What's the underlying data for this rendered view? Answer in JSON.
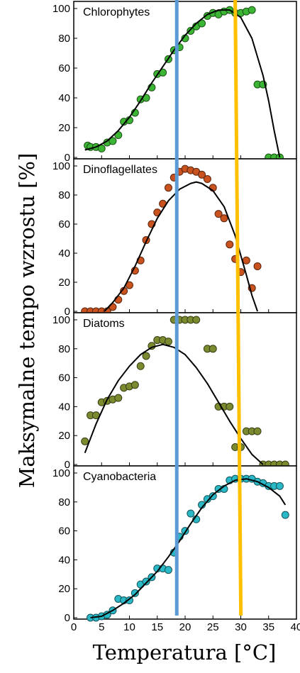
{
  "ylabel": "Maksymalne tempo wzrostu [%]",
  "xlabel": "Temperatura [°C]",
  "chart_data": [
    {
      "type": "scatter",
      "title": "Chlorophytes",
      "color": "#3cb534",
      "xlim": [
        0,
        40
      ],
      "ylim": [
        0,
        100
      ],
      "xticks": [
        0,
        5,
        10,
        15,
        20,
        25,
        30,
        35,
        40
      ],
      "yticks": [
        0,
        20,
        40,
        60,
        80,
        100
      ],
      "points": [
        [
          2.5,
          8
        ],
        [
          3,
          7
        ],
        [
          4,
          7
        ],
        [
          5,
          6
        ],
        [
          6,
          10
        ],
        [
          7,
          11
        ],
        [
          8,
          15
        ],
        [
          9,
          24
        ],
        [
          10,
          25
        ],
        [
          11,
          30
        ],
        [
          12,
          39
        ],
        [
          13,
          40
        ],
        [
          14,
          47
        ],
        [
          15,
          56
        ],
        [
          16,
          57
        ],
        [
          17,
          66
        ],
        [
          18,
          72
        ],
        [
          19,
          74
        ],
        [
          20,
          80
        ],
        [
          21,
          85
        ],
        [
          22,
          88
        ],
        [
          23,
          90
        ],
        [
          24,
          95
        ],
        [
          25,
          97
        ],
        [
          26,
          96
        ],
        [
          27,
          98
        ],
        [
          28,
          99
        ],
        [
          29,
          97
        ],
        [
          30,
          97
        ],
        [
          31,
          98
        ],
        [
          32,
          99
        ],
        [
          33,
          49
        ],
        [
          34,
          49
        ],
        [
          35,
          0
        ],
        [
          36,
          0
        ],
        [
          37,
          0
        ]
      ],
      "curve": [
        [
          2,
          5
        ],
        [
          4,
          7
        ],
        [
          6,
          11
        ],
        [
          8,
          18
        ],
        [
          10,
          27
        ],
        [
          12,
          38
        ],
        [
          14,
          50
        ],
        [
          16,
          61
        ],
        [
          18,
          72
        ],
        [
          20,
          82
        ],
        [
          22,
          90
        ],
        [
          24,
          96
        ],
        [
          26,
          99
        ],
        [
          28,
          99
        ],
        [
          30,
          94
        ],
        [
          32,
          80
        ],
        [
          34,
          55
        ],
        [
          35,
          38
        ],
        [
          36,
          18
        ],
        [
          37,
          0
        ]
      ]
    },
    {
      "type": "scatter",
      "title": "Dinoflagellates",
      "color": "#c9521e",
      "xlim": [
        0,
        40
      ],
      "ylim": [
        0,
        100
      ],
      "xticks": [
        0,
        5,
        10,
        15,
        20,
        25,
        30,
        35,
        40
      ],
      "yticks": [
        0,
        20,
        40,
        60,
        80,
        100
      ],
      "points": [
        [
          2,
          0
        ],
        [
          3,
          0
        ],
        [
          4,
          0
        ],
        [
          5,
          0
        ],
        [
          6,
          0
        ],
        [
          7,
          3
        ],
        [
          8,
          8
        ],
        [
          9,
          14
        ],
        [
          10,
          18
        ],
        [
          11,
          28
        ],
        [
          12,
          35
        ],
        [
          13,
          49
        ],
        [
          14,
          60
        ],
        [
          15,
          68
        ],
        [
          16,
          74
        ],
        [
          17,
          85
        ],
        [
          18,
          92
        ],
        [
          19,
          96
        ],
        [
          20,
          98
        ],
        [
          21,
          97
        ],
        [
          22,
          96
        ],
        [
          23,
          94
        ],
        [
          24,
          91
        ],
        [
          25,
          85
        ],
        [
          26,
          67
        ],
        [
          27,
          64
        ],
        [
          28,
          46
        ],
        [
          29,
          36
        ],
        [
          30,
          27
        ],
        [
          31,
          35
        ],
        [
          32,
          16
        ],
        [
          33,
          31
        ]
      ],
      "curve": [
        [
          5.5,
          0
        ],
        [
          7,
          6
        ],
        [
          9,
          16
        ],
        [
          11,
          31
        ],
        [
          13,
          48
        ],
        [
          15,
          64
        ],
        [
          17,
          76
        ],
        [
          19,
          84
        ],
        [
          21,
          88
        ],
        [
          22,
          89
        ],
        [
          23,
          88
        ],
        [
          25,
          83
        ],
        [
          27,
          72
        ],
        [
          29,
          52
        ],
        [
          31,
          25
        ],
        [
          32,
          11
        ],
        [
          33,
          0
        ]
      ]
    },
    {
      "type": "scatter",
      "title": "Diatoms",
      "color": "#7a8a2e",
      "xlim": [
        0,
        40
      ],
      "ylim": [
        0,
        100
      ],
      "xticks": [
        0,
        5,
        10,
        15,
        20,
        25,
        30,
        35,
        40
      ],
      "yticks": [
        0,
        20,
        40,
        60,
        80,
        100
      ],
      "points": [
        [
          2,
          16
        ],
        [
          3,
          34
        ],
        [
          4,
          34
        ],
        [
          5,
          43
        ],
        [
          6,
          44
        ],
        [
          7,
          45
        ],
        [
          8,
          46
        ],
        [
          9,
          53
        ],
        [
          10,
          54
        ],
        [
          11,
          55
        ],
        [
          12,
          68
        ],
        [
          13,
          75
        ],
        [
          14,
          82
        ],
        [
          15,
          86
        ],
        [
          16,
          86
        ],
        [
          17,
          85
        ],
        [
          18,
          100
        ],
        [
          19,
          100
        ],
        [
          20,
          100
        ],
        [
          21,
          100
        ],
        [
          22,
          100
        ],
        [
          24,
          80
        ],
        [
          25,
          80
        ],
        [
          26,
          40
        ],
        [
          27,
          40
        ],
        [
          28,
          40
        ],
        [
          29,
          12
        ],
        [
          30,
          12
        ],
        [
          31,
          23
        ],
        [
          32,
          23
        ],
        [
          33,
          23
        ],
        [
          34,
          0
        ],
        [
          35,
          0
        ],
        [
          36,
          0
        ],
        [
          37,
          0
        ],
        [
          38,
          0
        ]
      ],
      "curve": [
        [
          2,
          8
        ],
        [
          4,
          28
        ],
        [
          6,
          45
        ],
        [
          8,
          58
        ],
        [
          10,
          68
        ],
        [
          12,
          76
        ],
        [
          14,
          81
        ],
        [
          16,
          83
        ],
        [
          18,
          81
        ],
        [
          20,
          76
        ],
        [
          22,
          67
        ],
        [
          24,
          56
        ],
        [
          26,
          43
        ],
        [
          28,
          30
        ],
        [
          30,
          18
        ],
        [
          32,
          7
        ],
        [
          34,
          0
        ]
      ]
    },
    {
      "type": "scatter",
      "title": "Cyanobacteria",
      "color": "#2ab8c6",
      "xlim": [
        0,
        40
      ],
      "ylim": [
        0,
        100
      ],
      "xticks": [
        0,
        5,
        10,
        15,
        20,
        25,
        30,
        35,
        40
      ],
      "yticks": [
        0,
        20,
        40,
        60,
        80,
        100
      ],
      "points": [
        [
          3,
          0
        ],
        [
          4,
          0
        ],
        [
          5,
          1
        ],
        [
          6,
          2
        ],
        [
          7,
          5
        ],
        [
          8,
          13
        ],
        [
          9,
          12
        ],
        [
          10,
          12
        ],
        [
          11,
          17
        ],
        [
          12,
          23
        ],
        [
          13,
          25
        ],
        [
          14,
          28
        ],
        [
          15,
          34
        ],
        [
          16,
          34
        ],
        [
          17,
          33
        ],
        [
          18,
          45
        ],
        [
          19,
          56
        ],
        [
          20,
          60
        ],
        [
          21,
          72
        ],
        [
          22,
          68
        ],
        [
          23,
          78
        ],
        [
          24,
          82
        ],
        [
          25,
          84
        ],
        [
          26,
          89
        ],
        [
          27,
          89
        ],
        [
          28,
          95
        ],
        [
          29,
          96
        ],
        [
          30,
          96
        ],
        [
          31,
          96
        ],
        [
          32,
          96
        ],
        [
          33,
          94
        ],
        [
          34,
          93
        ],
        [
          35,
          91
        ],
        [
          36,
          91
        ],
        [
          37,
          91
        ],
        [
          38,
          71
        ]
      ],
      "curve": [
        [
          3,
          0
        ],
        [
          5,
          1
        ],
        [
          7,
          5
        ],
        [
          9,
          10
        ],
        [
          11,
          16
        ],
        [
          13,
          24
        ],
        [
          15,
          32
        ],
        [
          17,
          42
        ],
        [
          19,
          53
        ],
        [
          21,
          65
        ],
        [
          23,
          76
        ],
        [
          25,
          85
        ],
        [
          27,
          91
        ],
        [
          29,
          95
        ],
        [
          31,
          96
        ],
        [
          33,
          94
        ],
        [
          35,
          90
        ],
        [
          37,
          84
        ],
        [
          38,
          78
        ]
      ]
    }
  ],
  "reference_lines": [
    {
      "x": 18.5,
      "color": "#5b9bd5"
    },
    {
      "x": 29,
      "color": "#ffc000"
    }
  ]
}
